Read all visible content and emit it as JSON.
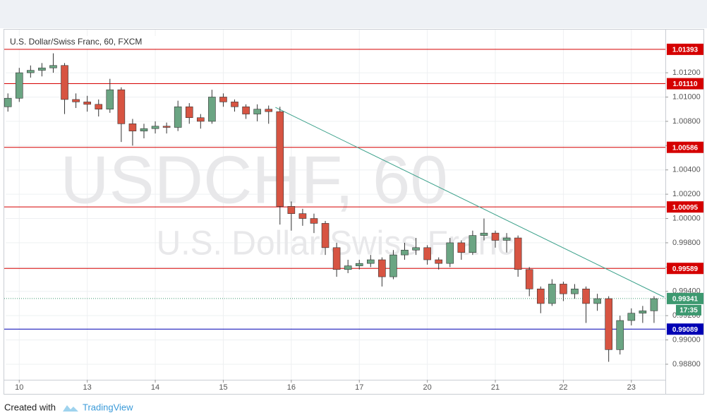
{
  "chart_data": {
    "type": "candlestick",
    "title": "U.S. Dollar/Swiss Franc, 60, FXCM",
    "watermark": [
      "USDCHF, 60",
      "U.S. Dollar/Swiss Franc"
    ],
    "up_color": "#6ba583",
    "down_color": "#d75442",
    "open": [
      1.0092,
      1.0099,
      1.012,
      1.0122,
      1.0124,
      1.0126,
      1.0098,
      1.0096,
      1.0094,
      1.009,
      1.0106,
      1.0078,
      1.0072,
      1.0074,
      1.0076,
      1.0075,
      1.0092,
      1.0083,
      1.008,
      1.01,
      1.0096,
      1.0092,
      1.0086,
      1.009,
      1.0088,
      1.001,
      1.0004,
      1.0,
      0.9996,
      0.9976,
      0.9958,
      0.9961,
      0.9963,
      0.9966,
      0.9952,
      0.997,
      0.9974,
      0.9976,
      0.9966,
      0.9963,
      0.998,
      0.9972,
      0.9986,
      0.9988,
      0.9982,
      0.9984,
      0.9958,
      0.9942,
      0.993,
      0.9946,
      0.9938,
      0.9942,
      0.993,
      0.9934,
      0.9892,
      0.9916,
      0.9922,
      0.9924
    ],
    "high": [
      1.0103,
      1.0124,
      1.0126,
      1.0128,
      1.0136,
      1.0128,
      1.0103,
      1.0101,
      1.0098,
      1.0115,
      1.0108,
      1.0082,
      1.0078,
      1.008,
      1.0079,
      1.0097,
      1.0095,
      1.0086,
      1.0106,
      1.0103,
      1.0098,
      1.0094,
      1.0094,
      1.0093,
      1.0092,
      1.0014,
      1.0008,
      1.0004,
      0.9998,
      0.998,
      0.9966,
      0.9966,
      0.997,
      0.9968,
      0.9974,
      0.998,
      0.9984,
      0.9978,
      0.9968,
      0.9984,
      0.9982,
      0.999,
      1.0,
      0.999,
      0.9988,
      0.9986,
      0.996,
      0.9944,
      0.995,
      0.9948,
      0.9946,
      0.9944,
      0.9938,
      0.9936,
      0.992,
      0.9926,
      0.9928,
      0.9936
    ],
    "low": [
      1.0088,
      1.0096,
      1.0116,
      1.0117,
      1.012,
      1.0086,
      1.0091,
      1.0088,
      1.0084,
      1.0087,
      1.0063,
      1.006,
      1.0066,
      1.007,
      1.007,
      1.0072,
      1.0078,
      1.0074,
      1.0078,
      1.0092,
      1.0088,
      1.0082,
      1.008,
      1.0078,
      0.9995,
      0.999,
      0.9994,
      0.9988,
      0.997,
      0.9952,
      0.9955,
      0.9958,
      0.996,
      0.9944,
      0.995,
      0.9966,
      0.997,
      0.9962,
      0.9958,
      0.996,
      0.9966,
      0.997,
      0.9982,
      0.9976,
      0.9972,
      0.9952,
      0.9936,
      0.9922,
      0.9928,
      0.9932,
      0.9934,
      0.9914,
      0.9924,
      0.9882,
      0.9888,
      0.9912,
      0.9914,
      0.9914
    ],
    "close": [
      1.0099,
      1.012,
      1.0122,
      1.0124,
      1.0126,
      1.0098,
      1.0096,
      1.0094,
      1.009,
      1.0106,
      1.0078,
      1.0072,
      1.0074,
      1.0076,
      1.0075,
      1.0092,
      1.0083,
      1.008,
      1.01,
      1.0096,
      1.0092,
      1.0086,
      1.009,
      1.0088,
      1.001,
      1.0004,
      1.0,
      0.9996,
      0.9976,
      0.9958,
      0.9961,
      0.9963,
      0.9966,
      0.9952,
      0.997,
      0.9974,
      0.9976,
      0.9966,
      0.9963,
      0.998,
      0.9972,
      0.9986,
      0.9988,
      0.9982,
      0.9984,
      0.9958,
      0.9942,
      0.993,
      0.9946,
      0.9938,
      0.9942,
      0.993,
      0.9934,
      0.9892,
      0.9916,
      0.9922,
      0.9924,
      0.9934
    ],
    "xlim": [
      -0.2,
      58
    ],
    "xticks": [
      {
        "value": 1,
        "label": "10"
      },
      {
        "value": 7,
        "label": "13"
      },
      {
        "value": 13,
        "label": "14"
      },
      {
        "value": 19,
        "label": "15"
      },
      {
        "value": 25,
        "label": "16"
      },
      {
        "value": 31,
        "label": "17"
      },
      {
        "value": 37,
        "label": "20"
      },
      {
        "value": 43,
        "label": "21"
      },
      {
        "value": 49,
        "label": "22"
      },
      {
        "value": 55,
        "label": "23"
      }
    ],
    "ylim": [
      0.98672,
      1.01555
    ],
    "yticks": [
      {
        "value": 0.988,
        "label": "0.98800"
      },
      {
        "value": 0.99,
        "label": "0.99000"
      },
      {
        "value": 0.992,
        "label": "0.99200"
      },
      {
        "value": 0.994,
        "label": "0.99400"
      },
      {
        "value": 0.996,
        "label": "0.99600"
      },
      {
        "value": 0.998,
        "label": "0.99800"
      },
      {
        "value": 1.0,
        "label": "1.00000"
      },
      {
        "value": 1.002,
        "label": "1.00200"
      },
      {
        "value": 1.004,
        "label": "1.00400"
      },
      {
        "value": 1.006,
        "label": "1.00600"
      },
      {
        "value": 1.008,
        "label": "1.00800"
      },
      {
        "value": 1.01,
        "label": "1.01000"
      },
      {
        "value": 1.012,
        "label": "1.01200"
      }
    ],
    "grid": true,
    "levels": [
      {
        "value": 1.01393,
        "label": "1.01393",
        "color": "#d50000"
      },
      {
        "value": 1.0111,
        "label": "1.01110",
        "color": "#d50000"
      },
      {
        "value": 1.00586,
        "label": "1.00586",
        "color": "#d50000"
      },
      {
        "value": 1.00095,
        "label": "1.00095",
        "color": "#d50000"
      },
      {
        "value": 0.99589,
        "label": "0.99589",
        "color": "#d50000"
      },
      {
        "value": 0.99089,
        "label": "0.99089",
        "color": "#0000b4"
      }
    ],
    "current_price": {
      "value": 0.99341,
      "label": "0.99341",
      "color": "#3d9970"
    },
    "countdown": "17:35",
    "trendline": {
      "x": [
        23.6,
        57.9
      ],
      "y": [
        1.00915,
        0.99352
      ],
      "color": "#3aa08a"
    }
  },
  "footer": {
    "prefix": "Created with",
    "brand": "TradingView"
  }
}
